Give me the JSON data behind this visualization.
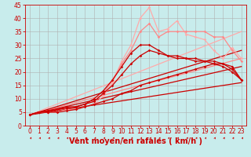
{
  "background_color": "#c8ecec",
  "grid_color": "#b0b0b0",
  "xlabel": "Vent moyen/en rafales ( km/h )",
  "xlabel_color": "#cc0000",
  "xlabel_fontsize": 7,
  "tick_color": "#cc0000",
  "tick_fontsize": 5.5,
  "xlim": [
    -0.5,
    23.5
  ],
  "ylim": [
    0,
    45
  ],
  "yticks": [
    0,
    5,
    10,
    15,
    20,
    25,
    30,
    35,
    40,
    45
  ],
  "xticks": [
    0,
    1,
    2,
    3,
    4,
    5,
    6,
    7,
    8,
    9,
    10,
    11,
    12,
    13,
    14,
    15,
    16,
    17,
    18,
    19,
    20,
    21,
    22,
    23
  ],
  "lines": [
    {
      "x": [
        0,
        1,
        2,
        3,
        4,
        5,
        6,
        7,
        8,
        9,
        10,
        11,
        12,
        13,
        14,
        15,
        16,
        17,
        18,
        19,
        20,
        21,
        22,
        23
      ],
      "y": [
        4,
        5,
        5,
        5,
        6,
        6,
        7,
        8,
        11,
        16,
        24,
        30,
        40,
        44,
        35,
        36,
        39,
        34,
        33,
        32,
        28,
        25,
        29,
        25
      ],
      "color": "#ffaaaa",
      "lw": 0.9,
      "marker": "D",
      "markersize": 1.8,
      "zorder": 4
    },
    {
      "x": [
        0,
        1,
        2,
        3,
        4,
        5,
        6,
        7,
        8,
        9,
        10,
        11,
        12,
        13,
        14,
        15,
        16,
        17,
        18,
        19,
        20,
        21,
        22,
        23
      ],
      "y": [
        4,
        5,
        5,
        6,
        6.5,
        7,
        8,
        9,
        12,
        17,
        23,
        28,
        35,
        38,
        33,
        35,
        35,
        35,
        35,
        35,
        33,
        33,
        28,
        24
      ],
      "color": "#ff8888",
      "lw": 0.9,
      "marker": "D",
      "markersize": 1.8,
      "zorder": 4
    },
    {
      "x": [
        0,
        23
      ],
      "y": [
        4,
        35
      ],
      "color": "#ffaaaa",
      "lw": 0.9,
      "marker": null,
      "markersize": 0,
      "zorder": 2
    },
    {
      "x": [
        0,
        23
      ],
      "y": [
        4,
        25
      ],
      "color": "#ff8888",
      "lw": 0.9,
      "marker": null,
      "markersize": 0,
      "zorder": 2
    },
    {
      "x": [
        0,
        1,
        2,
        3,
        4,
        5,
        6,
        7,
        8,
        9,
        10,
        11,
        12,
        13,
        14,
        15,
        16,
        17,
        18,
        19,
        20,
        21,
        22,
        23
      ],
      "y": [
        4,
        5,
        5.5,
        6,
        7,
        7,
        8,
        10,
        13,
        17,
        22,
        27,
        30,
        30,
        28,
        26,
        26,
        25,
        25,
        24,
        24,
        23,
        21,
        17
      ],
      "color": "#cc0000",
      "lw": 0.9,
      "marker": "D",
      "markersize": 1.8,
      "zorder": 5
    },
    {
      "x": [
        0,
        1,
        2,
        3,
        4,
        5,
        6,
        7,
        8,
        9,
        10,
        11,
        12,
        13,
        14,
        15,
        16,
        17,
        18,
        19,
        20,
        21,
        22,
        23
      ],
      "y": [
        4,
        5,
        5,
        6,
        6.5,
        7,
        8,
        9,
        12,
        15,
        19,
        23,
        26,
        28,
        27,
        26,
        25,
        25,
        24,
        24,
        23,
        23,
        22,
        17
      ],
      "color": "#cc0000",
      "lw": 0.9,
      "marker": "D",
      "markersize": 1.8,
      "zorder": 5
    },
    {
      "x": [
        0,
        1,
        2,
        3,
        4,
        5,
        6,
        7,
        8,
        9,
        10,
        11,
        12,
        13,
        14,
        15,
        16,
        17,
        18,
        19,
        20,
        21,
        22,
        23
      ],
      "y": [
        4,
        5,
        5,
        5,
        5.5,
        6,
        7,
        8,
        9,
        10,
        12,
        13,
        15,
        16,
        17,
        18,
        19,
        20,
        21,
        22,
        23,
        22,
        20,
        17
      ],
      "color": "#cc0000",
      "lw": 0.9,
      "marker": "D",
      "markersize": 1.8,
      "zorder": 5
    },
    {
      "x": [
        0,
        23
      ],
      "y": [
        4,
        16
      ],
      "color": "#cc0000",
      "lw": 0.9,
      "marker": null,
      "markersize": 0,
      "zorder": 2
    },
    {
      "x": [
        0,
        23
      ],
      "y": [
        4,
        22
      ],
      "color": "#cc0000",
      "lw": 0.9,
      "marker": null,
      "markersize": 0,
      "zorder": 2
    },
    {
      "x": [
        0,
        23
      ],
      "y": [
        4,
        28
      ],
      "color": "#cc0000",
      "lw": 0.9,
      "marker": null,
      "markersize": 0,
      "zorder": 2
    }
  ],
  "arrow_color": "#cc0000"
}
